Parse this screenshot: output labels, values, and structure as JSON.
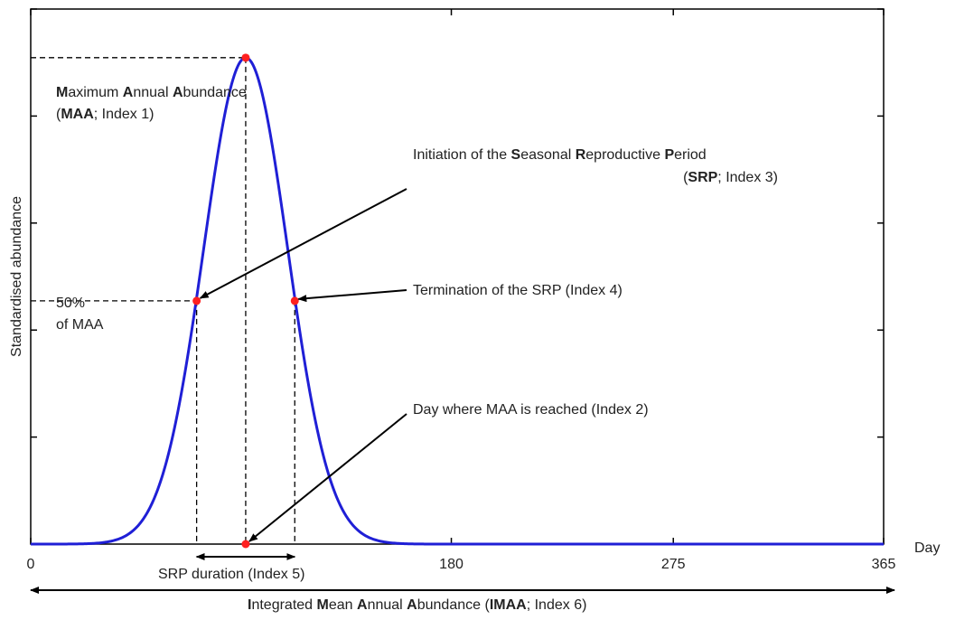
{
  "chart_data": {
    "type": "line",
    "xlabel": "Day",
    "ylabel": "Standardised abundance",
    "xlim": [
      0,
      365
    ],
    "ylim": [
      0,
      1.1
    ],
    "x_ticks": [
      0,
      180,
      275,
      365
    ],
    "y_tick_values": [
      0.22,
      0.44,
      0.66,
      0.88,
      1.1
    ],
    "grid": false,
    "series": [
      {
        "color": "#1f1fd6",
        "curve": {
          "kind": "gaussian",
          "peak_day": 92,
          "peak_value": 1.0,
          "sd_days": 18
        }
      }
    ],
    "key_points": [
      {
        "id": "maa",
        "x": 92,
        "y": 1.0
      },
      {
        "id": "srp_start",
        "x": 71,
        "y": 0.5
      },
      {
        "id": "srp_end",
        "x": 113,
        "y": 0.5
      },
      {
        "id": "maa_day",
        "x": 92,
        "y": 0.0
      }
    ],
    "annotations": {
      "maa_line1": "Maximum Annual Abundance",
      "maa_line2": "(MAA; Index 1)",
      "half_line1": "50%",
      "half_line2": "of MAA",
      "srp_init_line1": "Initiation of the Seasonal Reproductive Period",
      "srp_init_line2": "(SRP; Index 3)",
      "srp_term": "Termination of the SRP (Index 4)",
      "maa_day": "Day where MAA is reached (Index 2)",
      "srp_duration": "SRP duration (Index 5)",
      "imaa": "Integrated Mean Annual Abundance (IMAA; Index 6)"
    },
    "marker_color": "#ff2020"
  }
}
